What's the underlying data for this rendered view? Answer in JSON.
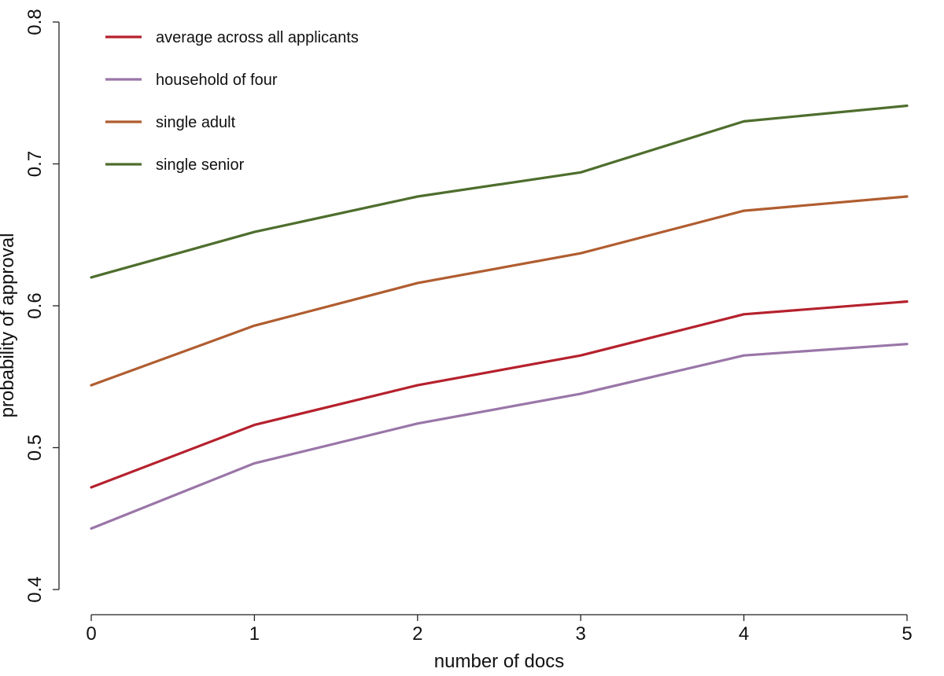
{
  "chart_data": {
    "type": "line",
    "x": [
      0,
      1,
      2,
      3,
      4,
      5
    ],
    "xlabel": "number of docs",
    "ylabel": "probability of approval",
    "xlim": [
      0,
      5
    ],
    "ylim": [
      0.4,
      0.8
    ],
    "x_ticks": [
      0,
      1,
      2,
      3,
      4,
      5
    ],
    "y_ticks": [
      0.4,
      0.5,
      0.6,
      0.7,
      0.8
    ],
    "x_tick_labels": [
      "0",
      "1",
      "2",
      "3",
      "4",
      "5"
    ],
    "y_tick_labels": [
      "0.4",
      "0.5",
      "0.6",
      "0.7",
      "0.8"
    ],
    "grid": false,
    "legend_position": "top-left",
    "series": [
      {
        "name": "average across all applicants",
        "color": "#b5212d",
        "values": [
          0.472,
          0.516,
          0.544,
          0.565,
          0.594,
          0.603
        ]
      },
      {
        "name": "household of four",
        "color": "#9a76a8",
        "values": [
          0.443,
          0.489,
          0.517,
          0.538,
          0.565,
          0.573
        ]
      },
      {
        "name": "single adult",
        "color": "#b05d30",
        "values": [
          0.544,
          0.586,
          0.616,
          0.637,
          0.667,
          0.677
        ]
      },
      {
        "name": "single senior",
        "color": "#4e6e2d",
        "values": [
          0.62,
          0.652,
          0.677,
          0.694,
          0.73,
          0.741
        ]
      }
    ]
  }
}
